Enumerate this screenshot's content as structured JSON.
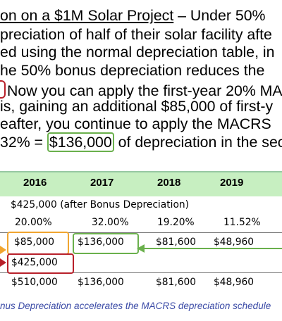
{
  "paragraph": {
    "line1_underlined": "on on a $1M Solar Project",
    "line1_rest": " – Under 50%",
    "line2": "preciation of half of their solar facility afte",
    "line3": "ed using the normal depreciation table, in",
    "line4": "he 50% bonus depreciation reduces the",
    "line5": "Now you can apply the first-year 20% MA",
    "line6": "is, gaining an additional $85,000 of first-y",
    "line7": "eafter, you continue to apply the MACRS",
    "line8_before": "32% = ",
    "line8_boxed": "$136,000",
    "line8_after": " of depreciation in the sec"
  },
  "table": {
    "years": [
      "2016",
      "2017",
      "2018",
      "2019"
    ],
    "basis_row": "$425,000  (after Bonus Depreciation)",
    "rates": [
      "20.00%",
      "32.00%",
      "19.20%",
      "11.52%"
    ],
    "macrs_row": [
      "$85,000",
      "$136,000",
      "$81,600",
      "$48,960"
    ],
    "bonus_row": "$425,000",
    "total_row": [
      "$510,000",
      "$136,000",
      "$81,600",
      "$48,960"
    ]
  },
  "caption": "nus Depreciation accelerates the MACRS depreciation schedule",
  "colors": {
    "green_box": "#6ab04c",
    "orange_box": "#f0a530",
    "red_box": "#b8202a",
    "header_band": "#c7efc1",
    "caption_text": "#3a4aa6"
  }
}
